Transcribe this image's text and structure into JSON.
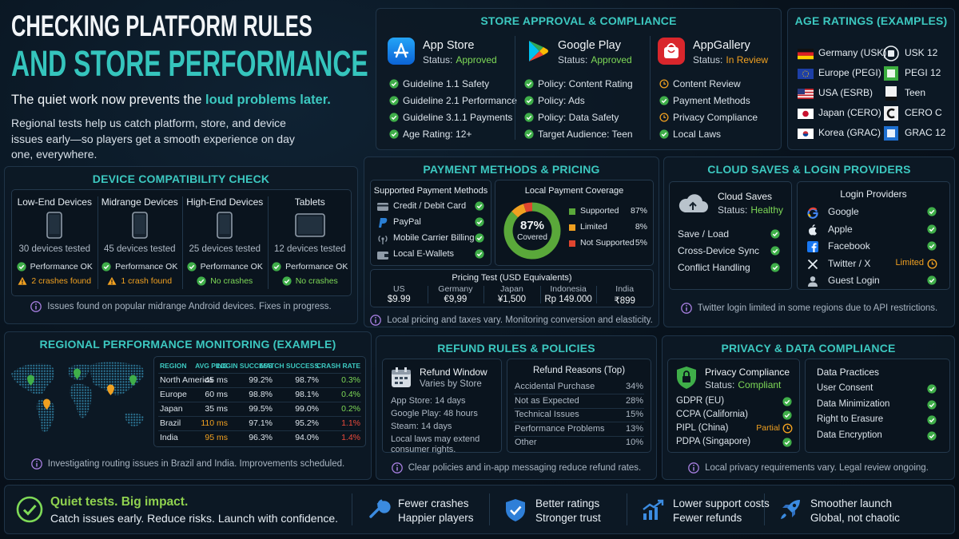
{
  "header": {
    "title_line1": "CHECKING PLATFORM RULES",
    "title_line2": "AND STORE PERFORMANCE",
    "tagline": "The quiet work now prevents the ",
    "tagline_highlight": "loud problems later.",
    "intro": "Regional tests help us catch platform, store, and device issues early—so players get a smooth experience on day one, everywhere."
  },
  "store_approval": {
    "title": "STORE APPROVAL & COMPLIANCE",
    "stores": [
      {
        "name": "App Store",
        "status_label": "Status:",
        "status": "Approved",
        "items": [
          "Guideline 1.1 Safety",
          "Guideline 2.1 Performance",
          "Guideline 3.1.1 Payments",
          "Age Rating: 12+"
        ]
      },
      {
        "name": "Google Play",
        "status_label": "Status:",
        "status": "Approved",
        "items": [
          "Policy: Content Rating",
          "Policy: Ads",
          "Policy: Data Safety",
          "Target Audience: Teen"
        ]
      },
      {
        "name": "AppGallery",
        "status_label": "Status:",
        "status": "In Review",
        "items": [
          "Content Review",
          "Payment Methods",
          "Privacy Compliance",
          "Local Laws"
        ]
      }
    ]
  },
  "age_ratings": {
    "title": "AGE RATINGS (EXAMPLES)",
    "rows": [
      {
        "region": "Germany (USK)",
        "rating": "USK 12"
      },
      {
        "region": "Europe (PEGI)",
        "rating": "PEGI 12"
      },
      {
        "region": "USA (ESRB)",
        "rating": "Teen"
      },
      {
        "region": "Japan (CERO)",
        "rating": "CERO C"
      },
      {
        "region": "Korea (GRAC)",
        "rating": "GRAC 12"
      }
    ]
  },
  "device_compatibility": {
    "title": "DEVICE COMPATIBILITY CHECK",
    "devices": [
      {
        "name": "Low-End Devices",
        "tested": "30 devices tested",
        "performance": "Performance OK",
        "issue": "2 crashes found"
      },
      {
        "name": "Midrange Devices",
        "tested": "45 devices tested",
        "performance": "Performance OK",
        "issue": "1 crash found"
      },
      {
        "name": "High-End Devices",
        "tested": "25 devices tested",
        "performance": "Performance OK",
        "issue": "No crashes"
      },
      {
        "name": "Tablets",
        "tested": "12 devices tested",
        "performance": "Performance OK",
        "issue": "No crashes"
      }
    ],
    "note": "Issues found on popular midrange Android devices. Fixes in progress."
  },
  "payment": {
    "title": "PAYMENT METHODS & PRICING",
    "methods_title": "Supported Payment Methods",
    "methods": [
      "Credit / Debit Card",
      "PayPal",
      "Mobile Carrier Billing",
      "Local E-Wallets"
    ],
    "pricing_title": "Pricing Test (USD Equivalents)",
    "pricing": [
      {
        "country": "US",
        "price": "$9.99"
      },
      {
        "country": "Germany",
        "price": "€9,99"
      },
      {
        "country": "Japan",
        "price": "¥1,500"
      },
      {
        "country": "Indonesia",
        "price": "Rp 149.000"
      },
      {
        "country": "India",
        "price": "₹899"
      }
    ],
    "note": "Local pricing and taxes vary. Monitoring conversion and elasticity."
  },
  "chart_data": {
    "type": "pie",
    "title": "Local Payment Coverage",
    "categories": [
      "Supported",
      "Limited",
      "Not Supported"
    ],
    "values": [
      87,
      8,
      5
    ],
    "value_labels": [
      "87%",
      "8%",
      "5%"
    ],
    "colors": [
      "#5aa83a",
      "#f0a020",
      "#e0452f"
    ],
    "center_caption": "Covered"
  },
  "cloud_login": {
    "title": "CLOUD SAVES & LOGIN PROVIDERS",
    "cloud_title": "Cloud Saves",
    "status_label": "Status:",
    "status": "Healthy",
    "features": [
      "Save / Load",
      "Cross-Device Sync",
      "Conflict Handling"
    ],
    "providers_title": "Login Providers",
    "providers": [
      {
        "name": "Google"
      },
      {
        "name": "Apple"
      },
      {
        "name": "Facebook"
      },
      {
        "name": "Twitter / X",
        "status": "Limited"
      },
      {
        "name": "Guest Login"
      }
    ],
    "note": "Twitter login limited in some regions due to API restrictions."
  },
  "regional": {
    "title": "REGIONAL PERFORMANCE MONITORING (EXAMPLE)",
    "table": {
      "header": [
        "REGION",
        "AVG PING",
        "LOGIN SUCCESS",
        "MATCH SUCCESS",
        "CRASH RATE"
      ],
      "rows": [
        [
          "North America",
          "45 ms",
          "99.2%",
          "98.7%",
          "0.3%"
        ],
        [
          "Europe",
          "60 ms",
          "98.8%",
          "98.1%",
          "0.4%"
        ],
        [
          "Japan",
          "35 ms",
          "99.5%",
          "99.0%",
          "0.2%"
        ],
        [
          "Brazil",
          "110 ms",
          "97.1%",
          "95.2%",
          "1.1%"
        ],
        [
          "India",
          "95 ms",
          "96.3%",
          "94.0%",
          "1.4%"
        ]
      ]
    },
    "note": "Investigating routing issues in Brazil and India. Improvements scheduled."
  },
  "refund": {
    "title": "REFUND RULES & POLICIES",
    "window_title": "Refund Window",
    "window_subtitle": "Varies by Store",
    "window_items": [
      "App Store: 14 days",
      "Google Play: 48 hours",
      "Steam: 14 days",
      "Local laws may extend consumer rights."
    ],
    "reasons_title": "Refund Reasons (Top)",
    "reasons": [
      {
        "name": "Accidental Purchase",
        "share": "34%"
      },
      {
        "name": "Not as Expected",
        "share": "28%"
      },
      {
        "name": "Technical Issues",
        "share": "15%"
      },
      {
        "name": "Performance Problems",
        "share": "13%"
      },
      {
        "name": "Other",
        "share": "10%"
      }
    ],
    "note": "Clear policies and in-app messaging reduce refund rates."
  },
  "privacy": {
    "title": "PRIVACY & DATA COMPLIANCE",
    "compliance_title": "Privacy Compliance",
    "status_label": "Status:",
    "status": "Compliant",
    "regulations": [
      {
        "name": "GDPR (EU)"
      },
      {
        "name": "CCPA (California)"
      },
      {
        "name": "PIPL (China)",
        "status": "Partial"
      },
      {
        "name": "PDPA (Singapore)"
      }
    ],
    "practices_title": "Data Practices",
    "practices": [
      "User Consent",
      "Data Minimization",
      "Right to Erasure",
      "Data Encryption"
    ],
    "note": "Local privacy requirements vary. Legal review ongoing."
  },
  "footer": {
    "headline": "Quiet tests. Big impact.",
    "subline": "Catch issues early. Reduce risks. Launch with confidence.",
    "benefits": [
      {
        "line1": "Fewer crashes",
        "line2": "Happier players"
      },
      {
        "line1": "Better ratings",
        "line2": "Stronger trust"
      },
      {
        "line1": "Lower support costs",
        "line2": "Fewer refunds"
      },
      {
        "line1": "Smoother launch",
        "line2": "Global, not chaotic"
      }
    ]
  }
}
